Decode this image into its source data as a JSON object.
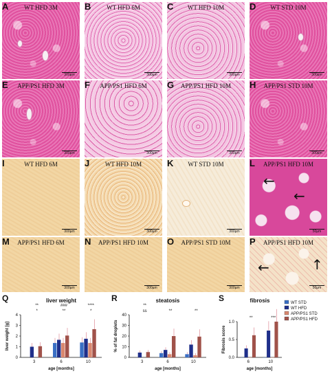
{
  "panels": [
    {
      "letter": "A",
      "title": "WT HFD 3M",
      "scale": "300µm"
    },
    {
      "letter": "B",
      "title": "WT HFD 6M",
      "scale": "300µm"
    },
    {
      "letter": "C",
      "title": "WT HFD 10M",
      "scale": "300µm"
    },
    {
      "letter": "D",
      "title": "WT STD 10M",
      "scale": "300µm"
    },
    {
      "letter": "E",
      "title": "APP/PS1 HFD 3M",
      "scale": "300µm"
    },
    {
      "letter": "F",
      "title": "APP/PS1 HFD 6M",
      "scale": "300µm"
    },
    {
      "letter": "G",
      "title": "APP/PS1 HFD 10M",
      "scale": "300µm"
    },
    {
      "letter": "H",
      "title": "APP/PS1 STD 10M",
      "scale": "300µm"
    },
    {
      "letter": "I",
      "title": "WT HFD 6M",
      "scale": "300µm"
    },
    {
      "letter": "J",
      "title": "WT HFD 10M",
      "scale": "300µm"
    },
    {
      "letter": "K",
      "title": "WT STD 10M",
      "scale": "300µm"
    },
    {
      "letter": "L",
      "title": "APP/PS1 HFD 10M",
      "scale": "50µm"
    },
    {
      "letter": "M",
      "title": "APP/PS1 HFD 6M",
      "scale": "300µm"
    },
    {
      "letter": "N",
      "title": "APP/PS1 HFD 10M",
      "scale": "300µm"
    },
    {
      "letter": "O",
      "title": "APP/PS1 STD 10M",
      "scale": "300µm"
    },
    {
      "letter": "P",
      "title": "APP/PS1 HFD 10M",
      "scale": "50µm"
    }
  ],
  "chart_data": [
    {
      "letter": "Q",
      "type": "bar",
      "title": "liver weight",
      "xlabel": "age [months]",
      "ylabel": "liver weight [g]",
      "categories": [
        "3",
        "6",
        "10"
      ],
      "ylim": [
        0,
        4
      ],
      "yticks": [
        "0",
        "1",
        "2",
        "3",
        "4"
      ],
      "series": [
        {
          "name": "WT STD",
          "color": "#3a6fc4",
          "values": [
            null,
            1.35,
            1.4
          ]
        },
        {
          "name": "WT HFD",
          "color": "#1f2f8a",
          "values": [
            1.0,
            1.65,
            1.75
          ]
        },
        {
          "name": "APP/PS1 STD",
          "color": "#d98870",
          "values": [
            null,
            1.35,
            1.35
          ]
        },
        {
          "name": "APP/PS1 HFD",
          "color": "#a0524a",
          "values": [
            1.05,
            2.05,
            2.65
          ]
        }
      ],
      "significance": [
        "*",
        "**",
        "*",
        "**",
        "###",
        "****"
      ]
    },
    {
      "letter": "R",
      "type": "bar",
      "title": "steatosis",
      "xlabel": "age [months]",
      "ylabel": "% of fat droplets",
      "categories": [
        "3",
        "6",
        "10"
      ],
      "ylim": [
        0,
        40
      ],
      "yticks": [
        "0",
        "10",
        "20",
        "30",
        "40"
      ],
      "series": [
        {
          "name": "WT STD",
          "color": "#3a6fc4",
          "values": [
            null,
            4,
            3
          ]
        },
        {
          "name": "WT HFD",
          "color": "#1f2f8a",
          "values": [
            4.5,
            7,
            12
          ]
        },
        {
          "name": "APP/PS1 STD",
          "color": "#d98870",
          "values": [
            null,
            3,
            2
          ]
        },
        {
          "name": "APP/PS1 HFD",
          "color": "#a0524a",
          "values": [
            5,
            20,
            19.5
          ]
        }
      ],
      "significance": [
        "ss",
        "**",
        "**",
        "**"
      ]
    },
    {
      "letter": "S",
      "type": "bar",
      "title": "fibrosis",
      "xlabel": "age [months]",
      "ylabel": "Fibrosis score",
      "categories": [
        "6",
        "10"
      ],
      "ylim": [
        0,
        1.0
      ],
      "yticks": [
        "0.0",
        "0.5",
        "1.0"
      ],
      "series": [
        {
          "name": "WT STD",
          "color": "#3a6fc4",
          "values": [
            0,
            0
          ]
        },
        {
          "name": "WT HFD",
          "color": "#1f2f8a",
          "values": [
            0.25,
            0.75
          ]
        },
        {
          "name": "APP/PS1 STD",
          "color": "#d98870",
          "values": [
            0,
            0
          ]
        },
        {
          "name": "APP/PS1 HFD",
          "color": "#a0524a",
          "values": [
            0.62,
            1.0
          ]
        }
      ],
      "significance": [
        "**",
        "***"
      ]
    }
  ],
  "legend": [
    "WT STD",
    "WT HFD",
    "APP/PS1 STD",
    "APP/PS1 HFD"
  ],
  "colors": {
    "wt_std": "#3a6fc4",
    "wt_hfd": "#1f2f8a",
    "app_std": "#d98870",
    "app_hfd": "#a0524a"
  }
}
